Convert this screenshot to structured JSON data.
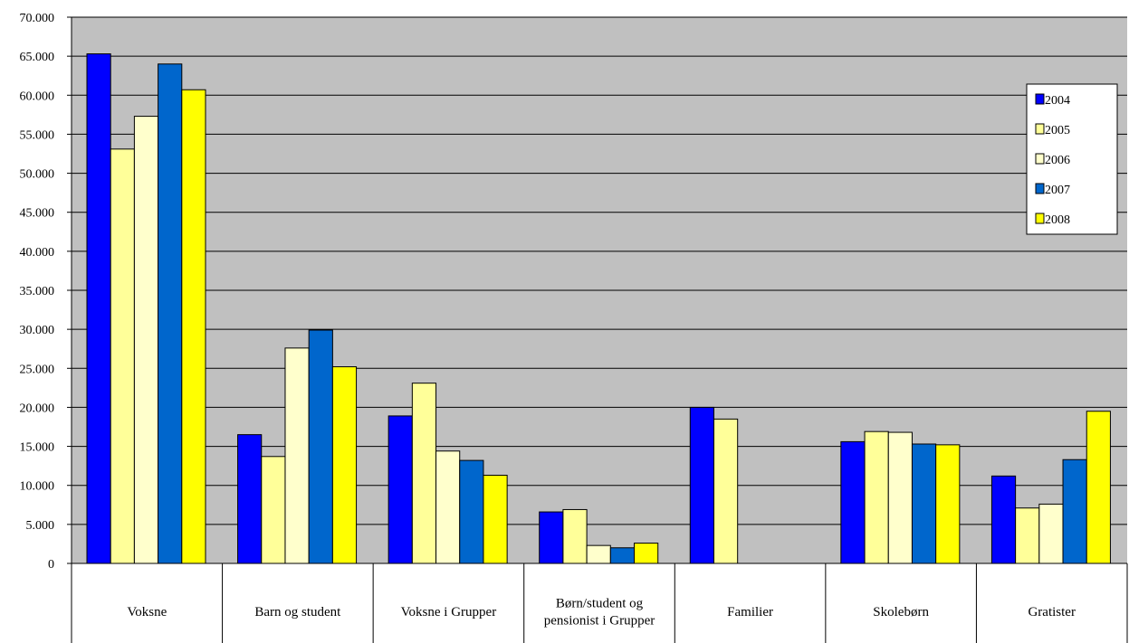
{
  "chart_data": {
    "type": "bar",
    "title": "",
    "xlabel": "",
    "ylabel": "",
    "ylim": [
      0,
      70000
    ],
    "y_ticks": [
      "0",
      "5.000",
      "10.000",
      "15.000",
      "20.000",
      "25.000",
      "30.000",
      "35.000",
      "40.000",
      "45.000",
      "50.000",
      "55.000",
      "60.000",
      "65.000",
      "70.000"
    ],
    "grid": true,
    "plot_background": "#C0C0C0",
    "legend_position": "right",
    "categories": [
      [
        "Voksne"
      ],
      [
        "Barn og student"
      ],
      [
        "Voksne i Grupper"
      ],
      [
        "Børn/student og",
        "pensionist i Grupper"
      ],
      [
        "Familier"
      ],
      [
        "Skolebørn"
      ],
      [
        "Gratister"
      ]
    ],
    "series": [
      {
        "name": "2004",
        "color": "#0000FF",
        "values": [
          65300,
          16500,
          18900,
          6600,
          20000,
          15600,
          11200
        ]
      },
      {
        "name": "2005",
        "color": "#FFFF99",
        "values": [
          53100,
          13700,
          23100,
          6900,
          18500,
          16900,
          7100
        ]
      },
      {
        "name": "2006",
        "color": "#FFFFCC",
        "values": [
          57300,
          27600,
          14400,
          2300,
          0,
          16800,
          7600
        ]
      },
      {
        "name": "2007",
        "color": "#0066CC",
        "values": [
          64000,
          29900,
          13200,
          2000,
          0,
          15300,
          13300
        ]
      },
      {
        "name": "2008",
        "color": "#FFFF00",
        "values": [
          60700,
          25200,
          11300,
          2600,
          0,
          15200,
          19500
        ]
      }
    ]
  }
}
